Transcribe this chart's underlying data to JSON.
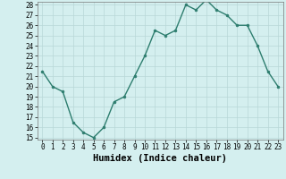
{
  "x": [
    0,
    1,
    2,
    3,
    4,
    5,
    6,
    7,
    8,
    9,
    10,
    11,
    12,
    13,
    14,
    15,
    16,
    17,
    18,
    19,
    20,
    21,
    22,
    23
  ],
  "y": [
    21.5,
    20.0,
    19.5,
    16.5,
    15.5,
    15.0,
    16.0,
    18.5,
    19.0,
    21.0,
    23.0,
    25.5,
    25.0,
    25.5,
    28.0,
    27.5,
    28.5,
    27.5,
    27.0,
    26.0,
    26.0,
    24.0,
    21.5,
    20.0
  ],
  "line_color": "#2d7d6e",
  "marker": "o",
  "marker_size": 2.0,
  "bg_color": "#d4efef",
  "grid_color": "#b8d8d8",
  "xlabel": "Humidex (Indice chaleur)",
  "ylim": [
    15,
    28
  ],
  "xlim": [
    -0.5,
    23.5
  ],
  "yticks": [
    15,
    16,
    17,
    18,
    19,
    20,
    21,
    22,
    23,
    24,
    25,
    26,
    27,
    28
  ],
  "xticks": [
    0,
    1,
    2,
    3,
    4,
    5,
    6,
    7,
    8,
    9,
    10,
    11,
    12,
    13,
    14,
    15,
    16,
    17,
    18,
    19,
    20,
    21,
    22,
    23
  ],
  "tick_label_fontsize": 5.5,
  "xlabel_fontsize": 7.5,
  "xlabel_fontweight": "bold",
  "linewidth": 1.0
}
